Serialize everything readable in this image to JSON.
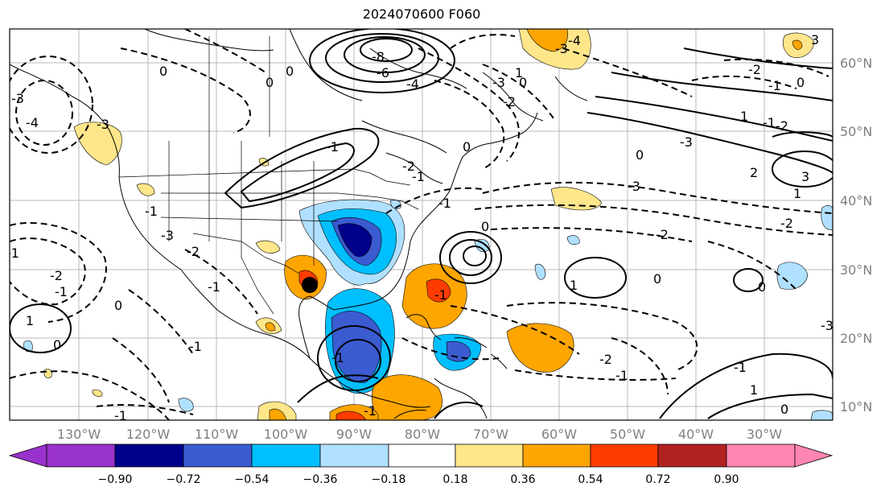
{
  "title": "2024070600 F060",
  "map": {
    "lon_labels": [
      "130°W",
      "120°W",
      "110°W",
      "100°W",
      "90°W",
      "80°W",
      "70°W",
      "60°W",
      "50°W",
      "40°W",
      "30°W"
    ],
    "lat_labels": [
      "60°N",
      "50°N",
      "40°N",
      "30°N",
      "20°N",
      "10°N"
    ],
    "contour_labels": [
      "-3",
      "-4",
      "-3",
      "0",
      "0",
      "-1",
      "-3",
      "-2",
      "-1",
      "-8",
      "-6",
      "-4",
      "-3",
      "-3",
      "-4",
      "3",
      "-2",
      "-1",
      "0",
      "1",
      "-1",
      "-2",
      "-3",
      "3",
      "2",
      "0",
      "1",
      "-3",
      "-2",
      "-2",
      "-1",
      "-2",
      "-1",
      "0",
      "-2",
      "-1",
      "-2",
      "-1",
      "1",
      "-1",
      "0",
      "0",
      "-1",
      "1",
      "-1",
      "0",
      "1",
      "0",
      "-1",
      "0",
      "-1",
      "-1",
      "-1",
      "0",
      "-2",
      "1",
      "0",
      "-1",
      "0",
      "-3",
      "0"
    ],
    "marker": "cyclone-center"
  },
  "colorbar": {
    "tick_labels": [
      "−0.90",
      "−0.72",
      "−0.54",
      "−0.36",
      "−0.18",
      "0.18",
      "0.36",
      "0.54",
      "0.72",
      "0.90"
    ],
    "colors": [
      "#9932cc",
      "#00008b",
      "#3b5bd1",
      "#00bfff",
      "#b0e0ff",
      "#ffffff",
      "#ffe68a",
      "#ffa500",
      "#ff3c00",
      "#b22222",
      "#ff85b3"
    ]
  }
}
